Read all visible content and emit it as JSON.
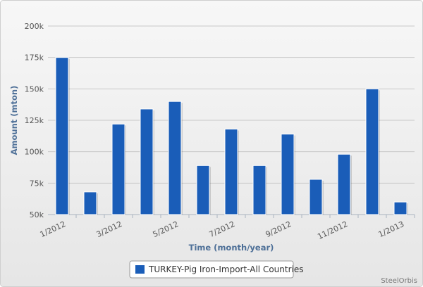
{
  "chart_data": {
    "type": "bar",
    "categories": [
      "1/2012",
      null,
      "3/2012",
      null,
      "5/2012",
      null,
      "7/2012",
      null,
      "9/2012",
      null,
      "11/2012",
      null,
      "1/2013"
    ],
    "series": [
      {
        "name": "TURKEY-Pig Iron-Import-All Countries",
        "color": "#1a5db8",
        "values": [
          175000,
          68000,
          122000,
          134000,
          140000,
          89000,
          118000,
          89000,
          114000,
          78000,
          98000,
          150000,
          60000
        ]
      }
    ],
    "ylim": [
      50000,
      200000
    ],
    "yticks": [
      {
        "value": 50000,
        "label": "50k"
      },
      {
        "value": 75000,
        "label": "75k"
      },
      {
        "value": 100000,
        "label": "100k"
      },
      {
        "value": 125000,
        "label": "125k"
      },
      {
        "value": 150000,
        "label": "150k"
      },
      {
        "value": 175000,
        "label": "175k"
      },
      {
        "value": 200000,
        "label": "200k"
      }
    ],
    "grid": true,
    "y_label": "Amount (mton)",
    "x_label": "Time (month/year)",
    "credit": "SteelOrbis"
  }
}
